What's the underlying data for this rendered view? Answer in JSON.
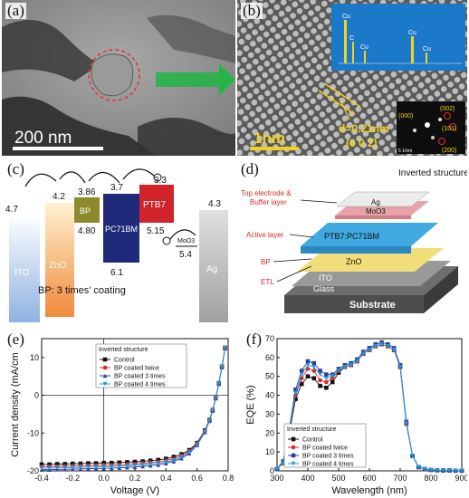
{
  "panels": {
    "a": {
      "label": "(a)",
      "scale_bar_text": "200 nm"
    },
    "b": {
      "label": "(b)",
      "scale_bar_text": "1nm",
      "d_spacing_text": "d=0.21nm",
      "plane_text": "(0 0 2)",
      "eds": {
        "peak_labels": [
          "Cu",
          "C",
          "Cu",
          "Cu",
          "Cu"
        ]
      },
      "saed": {
        "labels": [
          "(002)",
          "(000)",
          "(101)",
          "(200)"
        ],
        "scale_text": "5 1/nm"
      }
    },
    "c": {
      "label": "(c)",
      "materials": [
        "ITO",
        "ZnO",
        "BP",
        "PC71BM",
        "PTB7",
        "MoO3",
        "Ag"
      ],
      "levels": [
        "4.7",
        "4.2",
        "3.86",
        "4.80",
        "3.7",
        "6.1",
        "3.3",
        "5.15",
        "5.4",
        "4.3"
      ],
      "note": "BP: 3 times' coating",
      "colors": {
        "ito": "#a9c4e6",
        "zno": "#f7a85a",
        "bp": "#8c8a2c",
        "pcbm": "#1f2a7a",
        "ptb7": "#d1232a",
        "ag": "#b5b5b5"
      }
    },
    "d": {
      "label": "(d)",
      "title": "Inverted structure",
      "side_labels": [
        "Top electrode &",
        "Buffer layer",
        "Active layer",
        "BP",
        "ETL"
      ],
      "layer_labels": [
        "Ag",
        "MoO3",
        "PTB7:PC71BM",
        "ZnO",
        "ITO",
        "Glass",
        "Substrate"
      ]
    },
    "e": {
      "label": "(e)",
      "legend_title": "Inverted structure",
      "legend": [
        "Control",
        "BP coated twice",
        "BP coated 3 times",
        "BP coated 4 times"
      ]
    },
    "f": {
      "label": "(f)",
      "legend_title": "Inverted structure",
      "legend": [
        "Control",
        "BP coated twice",
        "BP coated 3 times",
        "BP coated 4 times"
      ]
    }
  },
  "chart_data": [
    {
      "type": "line",
      "xlabel": "Voltage (V)",
      "ylabel": "Current density (mA/cm",
      "xlim": [
        -0.4,
        0.8
      ],
      "ylim": [
        -20,
        15
      ],
      "xticks": [
        "-0.4",
        "-0.2",
        "0.0",
        "0.2",
        "0.4",
        "0.6",
        "0.8"
      ],
      "yticks": [
        "10",
        "0",
        "-10",
        "-20"
      ],
      "x": [
        -0.4,
        -0.35,
        -0.3,
        -0.25,
        -0.2,
        -0.15,
        -0.1,
        -0.05,
        0.0,
        0.05,
        0.1,
        0.15,
        0.2,
        0.25,
        0.3,
        0.35,
        0.4,
        0.45,
        0.5,
        0.55,
        0.6,
        0.65,
        0.68,
        0.7,
        0.72,
        0.74,
        0.76,
        0.78
      ],
      "series": [
        {
          "name": "Control",
          "color": "#111111",
          "marker": "square",
          "values": [
            -18.3,
            -18.3,
            -18.2,
            -18.2,
            -18.1,
            -18.1,
            -18.0,
            -18.0,
            -17.9,
            -17.9,
            -17.8,
            -17.7,
            -17.6,
            -17.5,
            -17.3,
            -17.1,
            -16.8,
            -16.3,
            -15.6,
            -14.5,
            -12.6,
            -9.3,
            -6.5,
            -3.9,
            -0.6,
            3.2,
            7.6,
            12.6
          ]
        },
        {
          "name": "BP coated twice",
          "color": "#e0262b",
          "marker": "circle",
          "values": [
            -18.9,
            -18.9,
            -18.8,
            -18.8,
            -18.7,
            -18.7,
            -18.6,
            -18.6,
            -18.5,
            -18.5,
            -18.4,
            -18.3,
            -18.2,
            -18.0,
            -17.8,
            -17.6,
            -17.3,
            -16.8,
            -16.0,
            -14.8,
            -12.8,
            -9.5,
            -6.6,
            -4.0,
            -0.7,
            3.1,
            7.5,
            12.5
          ]
        },
        {
          "name": "BP coated 3 times",
          "color": "#2e3f9e",
          "marker": "triangle",
          "values": [
            -19.7,
            -19.7,
            -19.6,
            -19.6,
            -19.5,
            -19.5,
            -19.4,
            -19.4,
            -19.3,
            -19.3,
            -19.2,
            -19.1,
            -19.0,
            -18.8,
            -18.6,
            -18.4,
            -18.0,
            -17.5,
            -16.7,
            -15.4,
            -13.2,
            -9.8,
            -6.8,
            -4.1,
            -0.8,
            3.0,
            7.4,
            12.4
          ]
        },
        {
          "name": "BP coated 4 times",
          "color": "#1f9bd6",
          "marker": "triangle-down",
          "values": [
            -19.3,
            -19.3,
            -19.2,
            -19.2,
            -19.1,
            -19.1,
            -19.0,
            -19.0,
            -18.9,
            -18.9,
            -18.8,
            -18.7,
            -18.6,
            -18.4,
            -18.2,
            -18.0,
            -17.7,
            -17.2,
            -16.4,
            -15.1,
            -13.0,
            -9.6,
            -6.7,
            -4.0,
            -0.7,
            3.1,
            7.5,
            12.5
          ]
        }
      ]
    },
    {
      "type": "line",
      "xlabel": "Wavelength (nm)",
      "ylabel": "EQE (%)",
      "xlim": [
        300,
        900
      ],
      "ylim": [
        0,
        70
      ],
      "xticks": [
        "300",
        "400",
        "500",
        "600",
        "700",
        "800",
        "900"
      ],
      "yticks": [
        "0",
        "10",
        "20",
        "30",
        "40",
        "50",
        "60",
        "70"
      ],
      "x": [
        300,
        320,
        340,
        360,
        380,
        400,
        420,
        440,
        460,
        480,
        500,
        520,
        540,
        560,
        580,
        600,
        620,
        640,
        660,
        680,
        700,
        720,
        740,
        760,
        780,
        800,
        820,
        840,
        860,
        880,
        900
      ],
      "series": [
        {
          "name": "Control",
          "color": "#111111",
          "marker": "square",
          "values": [
            1,
            4,
            20,
            38,
            46,
            50,
            49,
            45,
            44,
            47,
            52,
            55,
            56,
            58,
            62,
            64,
            66,
            67,
            66,
            64,
            55,
            25,
            8,
            2,
            1,
            0.5,
            0.3,
            0.2,
            0.2,
            0.1,
            0.1
          ]
        },
        {
          "name": "BP coated twice",
          "color": "#e0262b",
          "marker": "circle",
          "values": [
            1,
            4,
            21,
            40,
            49,
            54,
            53,
            48,
            47,
            49,
            53,
            55,
            56,
            58,
            62,
            64,
            66,
            67,
            66,
            64,
            55,
            25,
            8,
            2,
            1,
            0.5,
            0.3,
            0.2,
            0.2,
            0.1,
            0.1
          ]
        },
        {
          "name": "BP coated 3 times",
          "color": "#2e3f9e",
          "marker": "square",
          "values": [
            1,
            5,
            23,
            43,
            53,
            58,
            57,
            53,
            51,
            51,
            54,
            56,
            57,
            59,
            63,
            65,
            67,
            68,
            67,
            65,
            56,
            26,
            8,
            2,
            1,
            0.5,
            0.3,
            0.2,
            0.2,
            0.1,
            0.1
          ]
        },
        {
          "name": "BP coated 4 times",
          "color": "#1f9bd6",
          "marker": "triangle-down",
          "values": [
            1,
            4,
            22,
            41,
            51,
            56,
            55,
            51,
            49,
            50,
            53,
            55,
            56,
            58,
            62,
            64,
            66,
            67,
            66,
            64,
            55,
            25,
            8,
            2,
            1,
            0.5,
            0.3,
            0.2,
            0.2,
            0.1,
            0.1
          ]
        }
      ]
    }
  ]
}
